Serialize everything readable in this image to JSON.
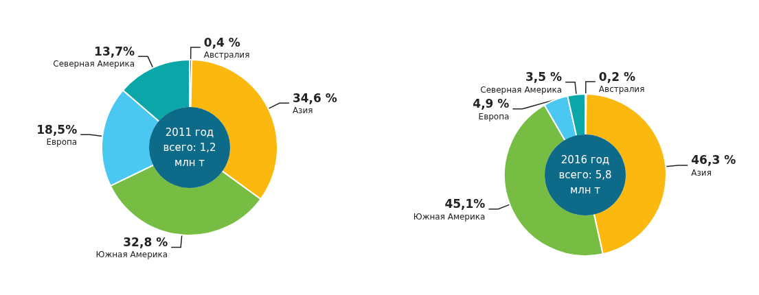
{
  "chart_data": [
    {
      "type": "donut",
      "title": "2011 год",
      "subtitle": "всего: 1,2 млн т",
      "categories": [
        "Австралия",
        "Азия",
        "Южная Америка",
        "Европа",
        "Северная Америка"
      ],
      "values": [
        0.4,
        34.6,
        32.8,
        18.5,
        13.7
      ],
      "colors": [
        "#e0532a",
        "#fbb90f",
        "#78bd43",
        "#4bc8f1",
        "#0ba6a8"
      ],
      "value_labels": [
        "0,4 %",
        "34,6 %",
        "32,8 %",
        "18,5%",
        "13,7%"
      ]
    },
    {
      "type": "donut",
      "title": "2016 год",
      "subtitle": "всего: 5,8 млн т",
      "categories": [
        "Австралия",
        "Азия",
        "Южная Америка",
        "Европа",
        "Северная Америка"
      ],
      "values": [
        0.2,
        46.3,
        45.1,
        4.9,
        3.5
      ],
      "colors": [
        "#e0532a",
        "#fbb90f",
        "#78bd43",
        "#4bc8f1",
        "#0ba6a8"
      ],
      "value_labels": [
        "0,2 %",
        "46,3 %",
        "45,1%",
        "4,9 %",
        "3,5 %"
      ]
    }
  ]
}
